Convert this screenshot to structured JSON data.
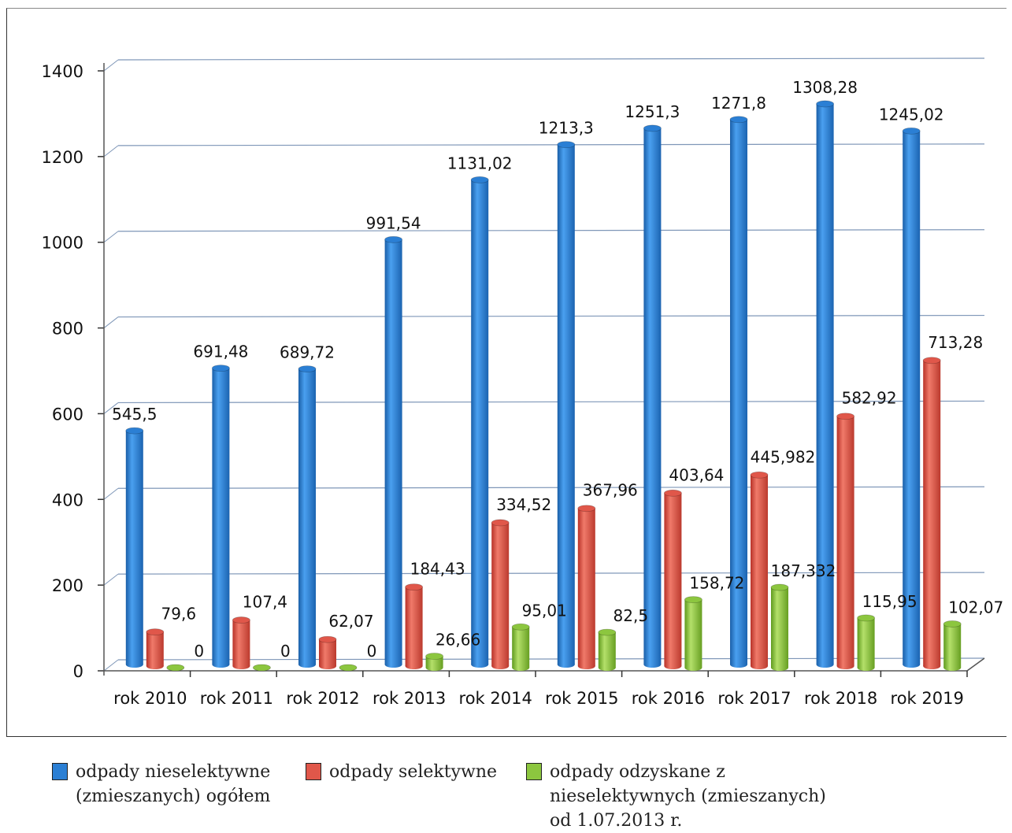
{
  "chart_data": {
    "type": "bar",
    "categories": [
      "rok 2010",
      "rok 2011",
      "rok 2012",
      "rok 2013",
      "rok 2014",
      "rok 2015",
      "rok 2016",
      "rok 2017",
      "rok 2018",
      "rok 2019"
    ],
    "series": [
      {
        "name": "odpady nieselektywne (zmieszanych) ogółem",
        "color": "#2b7fd4",
        "values": [
          545.5,
          691.48,
          689.72,
          991.54,
          1131.02,
          1213.3,
          1251.3,
          1271.8,
          1308.28,
          1245.02
        ],
        "labels": [
          "545,5",
          "691,48",
          "689,72",
          "991,54",
          "1131,02",
          "1213,3",
          "1251,3",
          "1271,8",
          "1308,28",
          "1245,02"
        ]
      },
      {
        "name": "odpady selektywne",
        "color": "#e0574a",
        "values": [
          79.6,
          107.4,
          62.07,
          184.43,
          334.52,
          367.96,
          403.64,
          445.982,
          582.92,
          713.28
        ],
        "labels": [
          "79,6",
          "107,4",
          "62,07",
          "184,43",
          "334,52",
          "367,96",
          "403,64",
          "445,982",
          "582,92",
          "713,28"
        ]
      },
      {
        "name": "odpady odzyskane z nieselektywnych (zmieszanych) od 1.07.2013 r.",
        "color": "#8cc63f",
        "values": [
          0,
          0,
          0,
          26.66,
          95.01,
          82.5,
          158.72,
          187.332,
          115.95,
          102.07
        ],
        "labels": [
          "0",
          "0",
          "0",
          "26,66",
          "95,01",
          "82,5",
          "158,72",
          "187,332",
          "115,95",
          "102,07"
        ]
      }
    ],
    "ylim": [
      0,
      1400
    ],
    "yticks": [
      0,
      200,
      400,
      600,
      800,
      1000,
      1200,
      1400
    ],
    "grid": true,
    "legend": "bottom"
  },
  "legend": {
    "items": [
      {
        "text": "odpady nieselektywne\n(zmieszanych) ogółem",
        "color": "#2b7fd4"
      },
      {
        "text": "odpady selektywne",
        "color": "#e0574a"
      },
      {
        "text": "odpady odzyskane z\nnieselektywnych (zmieszanych)\nod 1.07.2013 r.",
        "color": "#8cc63f"
      }
    ]
  }
}
